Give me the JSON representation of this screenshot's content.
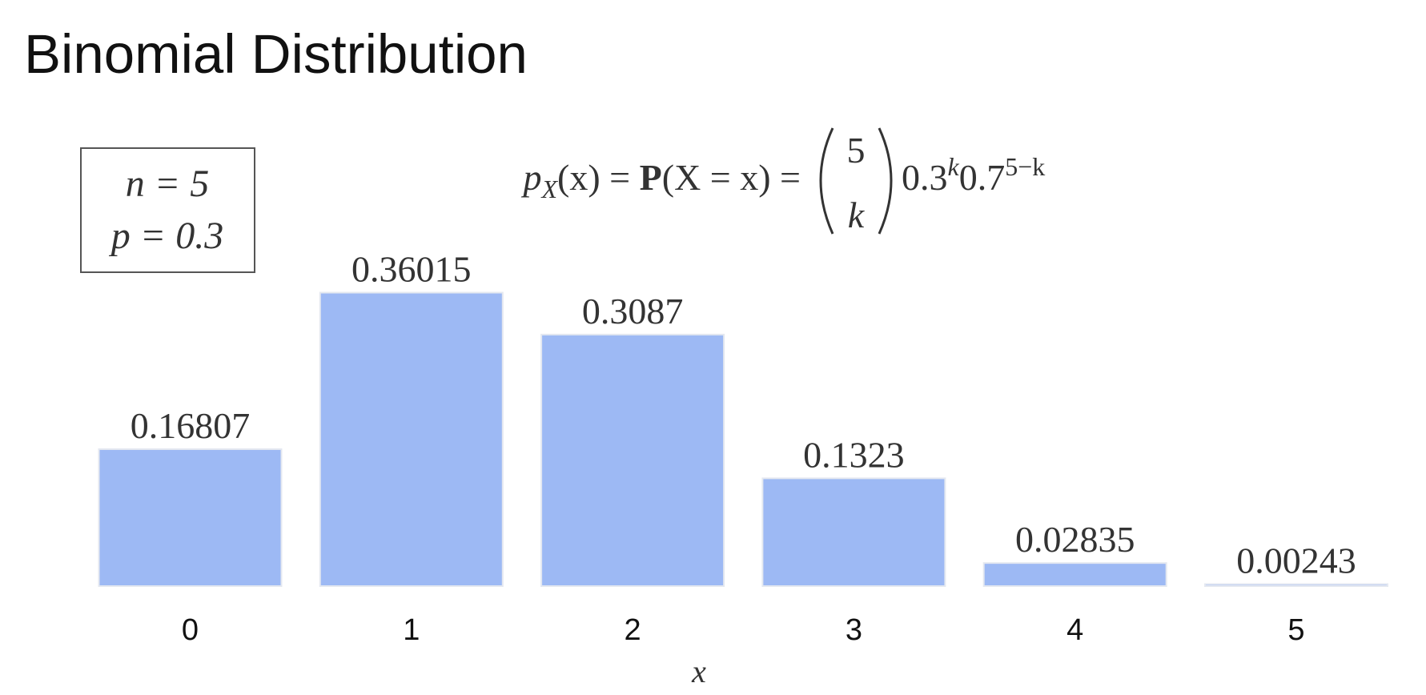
{
  "chart_data": {
    "type": "bar",
    "title": "Binomial Distribution",
    "parameters": [
      "n = 5",
      "p = 0.3"
    ],
    "formula": {
      "p": "p",
      "sub": "X",
      "lhs": "(x) = ",
      "prob": "P",
      "arg": "(X = x) = ",
      "top": "5",
      "bottom": "k",
      "base1": "0.3",
      "exp1": "k",
      "base2": "0.7",
      "exp2": "5−k"
    },
    "categories": [
      "0",
      "1",
      "2",
      "3",
      "4",
      "5"
    ],
    "values": [
      0.16807,
      0.36015,
      0.3087,
      0.1323,
      0.02835,
      0.00243
    ],
    "color": "#9db9f4",
    "x_label": "x"
  }
}
